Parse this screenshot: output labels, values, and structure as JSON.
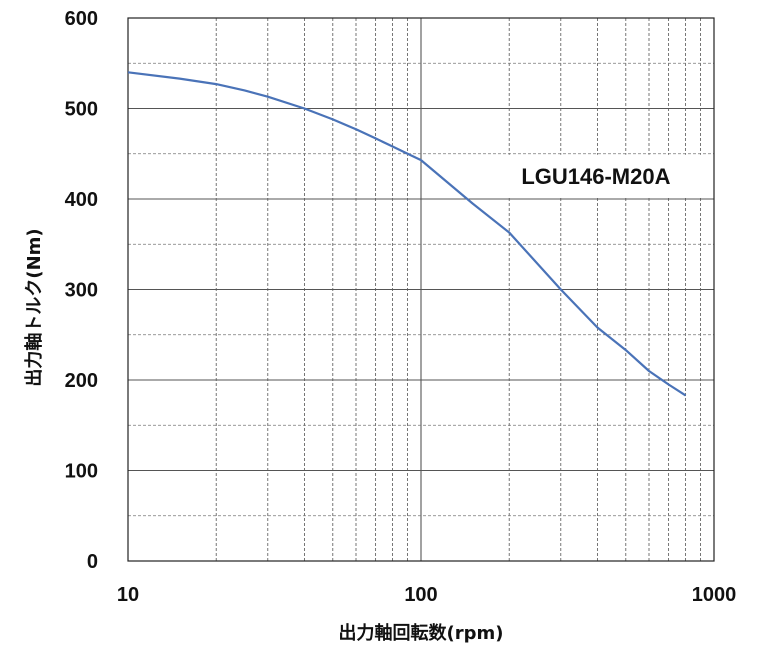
{
  "chart_data": {
    "type": "line",
    "xscale": "log",
    "xlim": [
      10,
      1000
    ],
    "ylim": [
      0,
      600
    ],
    "xlabel": "出力軸回転数(rpm)",
    "ylabel": "出力軸トルク(Nm)",
    "xticks": [
      "10",
      "100",
      "1000"
    ],
    "yticks": [
      "0",
      "100",
      "200",
      "300",
      "400",
      "500",
      "600"
    ],
    "grid": true,
    "annotation": "LGU146-M20A",
    "line_color": "#4a73b8",
    "series": [
      {
        "x": [
          10,
          15,
          20,
          25,
          30,
          40,
          50,
          60,
          70,
          80,
          90,
          100,
          150,
          200,
          300,
          400,
          500,
          600,
          700,
          800
        ],
        "y": [
          540,
          533,
          527,
          520,
          513,
          500,
          488,
          477,
          467,
          458,
          450,
          443,
          395,
          363,
          300,
          258,
          233,
          210,
          195,
          183
        ]
      }
    ]
  }
}
